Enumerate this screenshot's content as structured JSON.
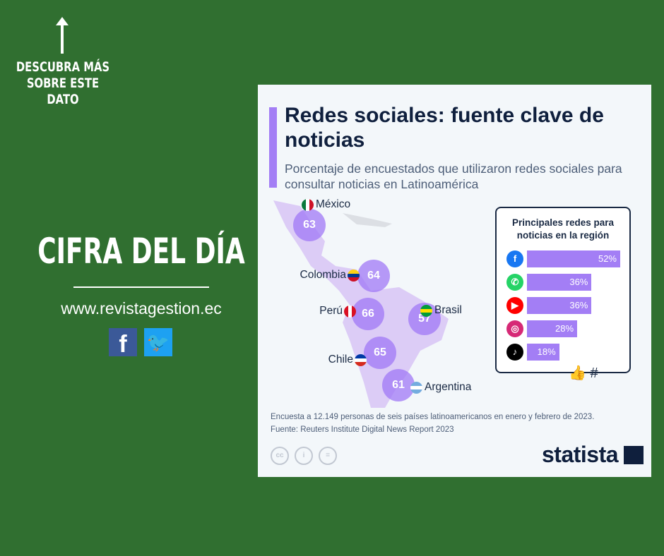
{
  "side": {
    "discover": "DESCUBRA MÁS SOBRE ESTE DATO",
    "headline": "CIFRA DEL DÍA",
    "website": "www.revistagestion.ec",
    "facebook_icon": "f",
    "twitter_icon": "🐦"
  },
  "chart_data": {
    "type": "bar",
    "title": "Redes sociales: fuente clave de noticias",
    "subtitle": "Porcentaje de encuestados que utilizaron redes sociales para consultar noticias en Latinoamérica",
    "map": [
      {
        "country": "México",
        "value": 63
      },
      {
        "country": "Colombia",
        "value": 64
      },
      {
        "country": "Perú",
        "value": 66
      },
      {
        "country": "Brasil",
        "value": 57
      },
      {
        "country": "Chile",
        "value": 65
      },
      {
        "country": "Argentina",
        "value": 61
      }
    ],
    "legend_title": "Principales redes para noticias en la región",
    "categories": [
      "Facebook",
      "WhatsApp",
      "YouTube",
      "Instagram",
      "TikTok"
    ],
    "values": [
      52,
      36,
      36,
      28,
      18
    ],
    "value_labels": [
      "52%",
      "36%",
      "36%",
      "28%",
      "18%"
    ],
    "colors": {
      "accent": "#a37ef5",
      "bubble": "#a078f5"
    }
  },
  "footer": {
    "note": "Encuesta a 12.149 personas de seis países latinoamericanos en enero y febrero de 2023.",
    "source": "Fuente: Reuters Institute Digital News Report 2023",
    "license": [
      "cc",
      "i",
      "="
    ],
    "logo": "statista"
  }
}
